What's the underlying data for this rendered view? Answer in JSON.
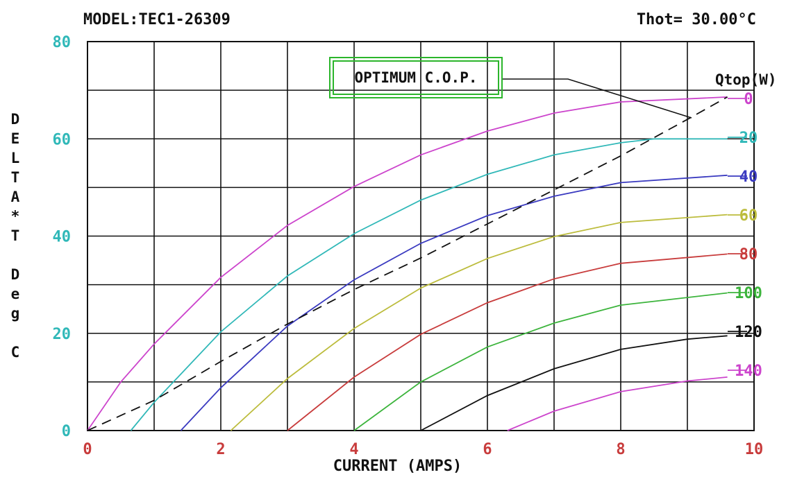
{
  "header": {
    "model": "MODEL:TEC1-26309",
    "thot": "Thot= 30.00°C"
  },
  "annotation": {
    "cop_label": "OPTIMUM C.O.P."
  },
  "chart_data": {
    "type": "line",
    "xlabel": "CURRENT (AMPS)",
    "ylabel": "DELTA*T Deg C",
    "xlim": [
      0,
      10
    ],
    "ylim": [
      0,
      80
    ],
    "x_ticks": [
      0,
      2,
      4,
      6,
      8,
      10
    ],
    "y_ticks": [
      0,
      20,
      40,
      60,
      80
    ],
    "x_tick_color": "#c83c3c",
    "y_tick_color": "#30b8b8",
    "grid": true,
    "grid_x_step": 1,
    "grid_y_step": 10,
    "legend_title": "Qtop(W)",
    "series": [
      {
        "name": "0",
        "color": "#cc44cc",
        "points": [
          [
            0,
            0
          ],
          [
            0.5,
            10
          ],
          [
            1,
            17.8
          ],
          [
            2,
            31.5
          ],
          [
            3,
            42.2
          ],
          [
            4,
            50.2
          ],
          [
            5,
            56.7
          ],
          [
            6,
            61.6
          ],
          [
            7,
            65.3
          ],
          [
            8,
            67.6
          ],
          [
            9.6,
            68.6
          ]
        ]
      },
      {
        "name": "20",
        "color": "#30b8b8",
        "points": [
          [
            0.65,
            0
          ],
          [
            1,
            5.8
          ],
          [
            2,
            20.3
          ],
          [
            3,
            31.8
          ],
          [
            4,
            40.5
          ],
          [
            5,
            47.4
          ],
          [
            6,
            52.7
          ],
          [
            7,
            56.7
          ],
          [
            8,
            59.2
          ],
          [
            8.5,
            60
          ],
          [
            9.6,
            60
          ]
        ]
      },
      {
        "name": "40",
        "color": "#3a3ac0",
        "points": [
          [
            1.4,
            0
          ],
          [
            2,
            8.8
          ],
          [
            3,
            21.5
          ],
          [
            4,
            31.0
          ],
          [
            5,
            38.5
          ],
          [
            6,
            44.2
          ],
          [
            7,
            48.2
          ],
          [
            8,
            51
          ],
          [
            9.6,
            52.5
          ]
        ]
      },
      {
        "name": "60",
        "color": "#bcbc3c",
        "points": [
          [
            2.15,
            0
          ],
          [
            3,
            10.7
          ],
          [
            4,
            21.0
          ],
          [
            5,
            29.3
          ],
          [
            6,
            35.4
          ],
          [
            7,
            39.9
          ],
          [
            8,
            42.8
          ],
          [
            9.6,
            44.4
          ]
        ]
      },
      {
        "name": "80",
        "color": "#c83c3c",
        "points": [
          [
            3,
            0
          ],
          [
            4,
            11.0
          ],
          [
            5,
            19.8
          ],
          [
            6,
            26.3
          ],
          [
            7,
            31.2
          ],
          [
            8,
            34.4
          ],
          [
            9.6,
            36.3
          ]
        ]
      },
      {
        "name": "100",
        "color": "#3cb43c",
        "points": [
          [
            4,
            0
          ],
          [
            5,
            10.0
          ],
          [
            6,
            17.2
          ],
          [
            7,
            22.1
          ],
          [
            8,
            25.8
          ],
          [
            9.6,
            28.3
          ]
        ]
      },
      {
        "name": "120",
        "color": "#111111",
        "points": [
          [
            5,
            0
          ],
          [
            6,
            7.2
          ],
          [
            7,
            12.7
          ],
          [
            8,
            16.7
          ],
          [
            9,
            18.8
          ],
          [
            9.6,
            19.5
          ]
        ]
      },
      {
        "name": "140",
        "color": "#cc44cc",
        "points": [
          [
            6.3,
            0
          ],
          [
            7,
            4.0
          ],
          [
            8,
            8.0
          ],
          [
            9,
            10.2
          ],
          [
            9.6,
            11
          ]
        ]
      }
    ],
    "optimum_cop": {
      "color": "#111111",
      "points": [
        [
          0,
          0
        ],
        [
          1,
          6.2
        ],
        [
          2,
          14.2
        ],
        [
          3,
          21.9
        ],
        [
          4,
          29.0
        ],
        [
          5,
          35.5
        ],
        [
          6,
          42.5
        ],
        [
          7,
          49.5
        ],
        [
          8,
          56.5
        ],
        [
          9,
          64
        ],
        [
          9.6,
          68.6
        ]
      ]
    }
  }
}
